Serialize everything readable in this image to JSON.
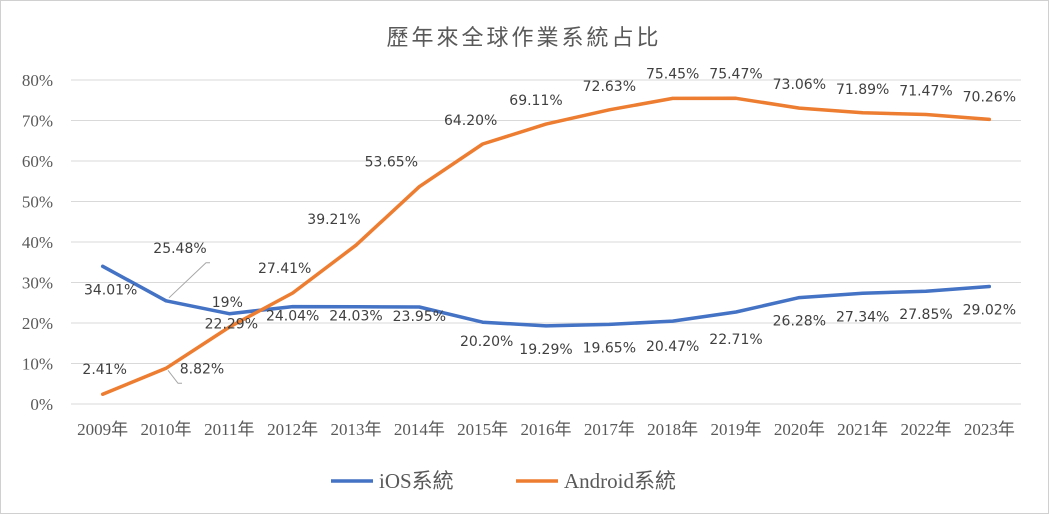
{
  "chart_data": {
    "type": "line",
    "title": "歷年來全球作業系統占比",
    "xlabel": "",
    "ylabel": "",
    "ylim": [
      0,
      80
    ],
    "y_ticks": [
      "0%",
      "10%",
      "20%",
      "30%",
      "40%",
      "50%",
      "60%",
      "70%",
      "80%"
    ],
    "grid": true,
    "legend_position": "bottom",
    "categories": [
      "2009年",
      "2010年",
      "2011年",
      "2012年",
      "2013年",
      "2014年",
      "2015年",
      "2016年",
      "2017年",
      "2018年",
      "2019年",
      "2020年",
      "2021年",
      "2022年",
      "2023年"
    ],
    "series": [
      {
        "name": "iOS系統",
        "color": "#4472C4",
        "values": [
          34.01,
          25.48,
          22.29,
          24.04,
          24.03,
          23.95,
          20.2,
          19.29,
          19.65,
          20.47,
          22.71,
          26.28,
          27.34,
          27.85,
          29.02
        ],
        "labels": [
          "34.01%",
          "25.48%",
          "22.29%",
          "24.04%",
          "24.03%",
          "23.95%",
          "20.20%",
          "19.29%",
          "19.65%",
          "20.47%",
          "22.71%",
          "26.28%",
          "27.34%",
          "27.85%",
          "29.02%"
        ]
      },
      {
        "name": "Android系統",
        "color": "#ED7D31",
        "values": [
          2.41,
          8.82,
          19,
          27.41,
          39.21,
          53.65,
          64.2,
          69.11,
          72.63,
          75.45,
          75.47,
          73.06,
          71.89,
          71.47,
          70.26
        ],
        "labels": [
          "2.41%",
          "8.82%",
          "19%",
          "27.41%",
          "39.21%",
          "53.65%",
          "64.20%",
          "69.11%",
          "72.63%",
          "75.45%",
          "75.47%",
          "73.06%",
          "71.89%",
          "71.47%",
          "70.26%"
        ]
      }
    ]
  }
}
